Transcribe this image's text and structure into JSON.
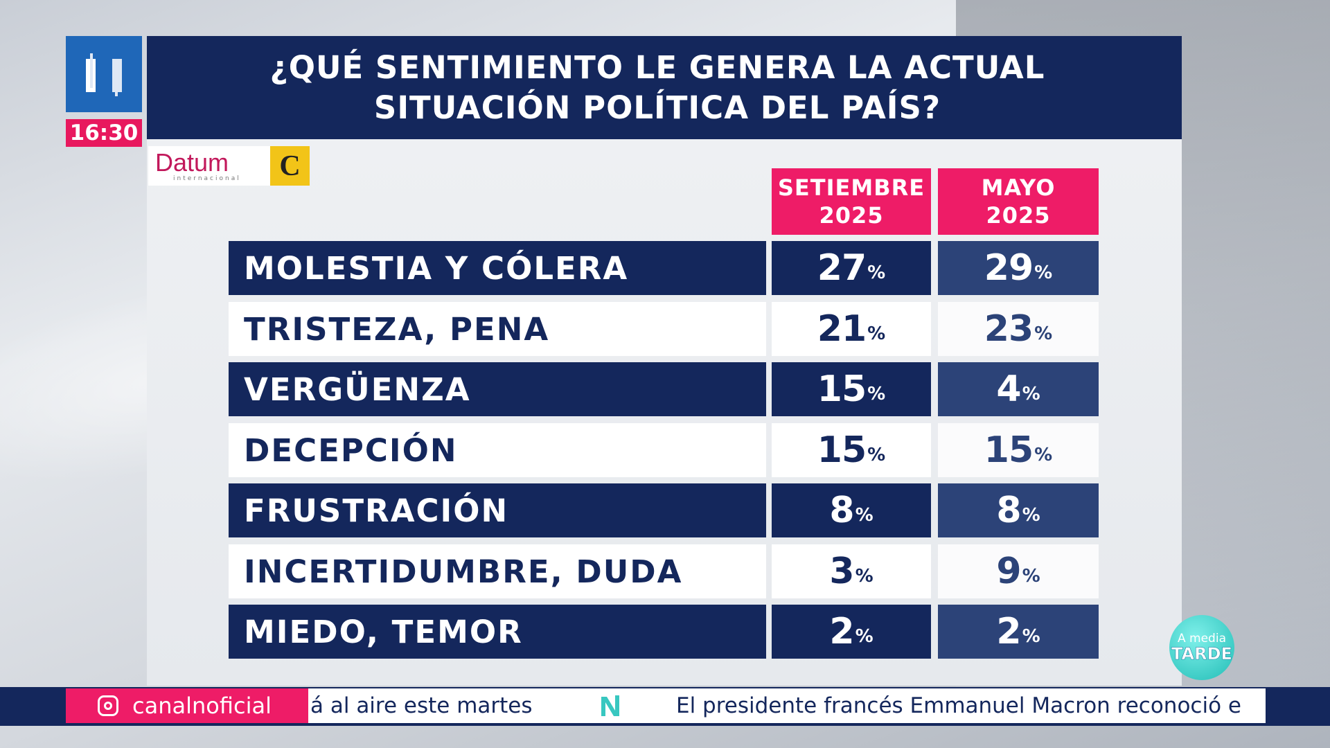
{
  "channel": {
    "clock": "16:30",
    "social": "canalnoficial"
  },
  "title": "¿QUÉ SENTIMIENTO LE GENERA LA ACTUAL\nSITUACIÓN POLÍTICA DEL PAÍS?",
  "sources": {
    "datum_name": "Datum",
    "datum_sub": "internacional",
    "newspaper_glyph": "C"
  },
  "show_badge": {
    "line1": "A media",
    "line2": "TARDE"
  },
  "ticker": {
    "left_text": "á al aire este martes",
    "right_text": "El presidente francés Emmanuel Macron reconoció e"
  },
  "colors": {
    "navy": "#14275c",
    "navy_light": "#2c4378",
    "pink": "#ee1c67",
    "logo_blue": "#1f67b8"
  },
  "chart_data": {
    "type": "table",
    "title": "¿QUÉ SENTIMIENTO LE GENERA LA ACTUAL SITUACIÓN POLÍTICA DEL PAÍS?",
    "columns": [
      {
        "line1": "SETIEMBRE",
        "line2": "2025"
      },
      {
        "line1": "MAYO",
        "line2": "2025"
      }
    ],
    "unit": "%",
    "categories": [
      "MOLESTIA Y CÓLERA",
      "TRISTEZA, PENA",
      "VERGÜENZA",
      "DECEPCIÓN",
      "FRUSTRACIÓN",
      "INCERTIDUMBRE, DUDA",
      "MIEDO, TEMOR"
    ],
    "series": [
      {
        "name": "SETIEMBRE 2025",
        "values": [
          27,
          21,
          15,
          15,
          8,
          3,
          2
        ]
      },
      {
        "name": "MAYO 2025",
        "values": [
          29,
          23,
          4,
          15,
          8,
          9,
          2
        ]
      }
    ]
  }
}
